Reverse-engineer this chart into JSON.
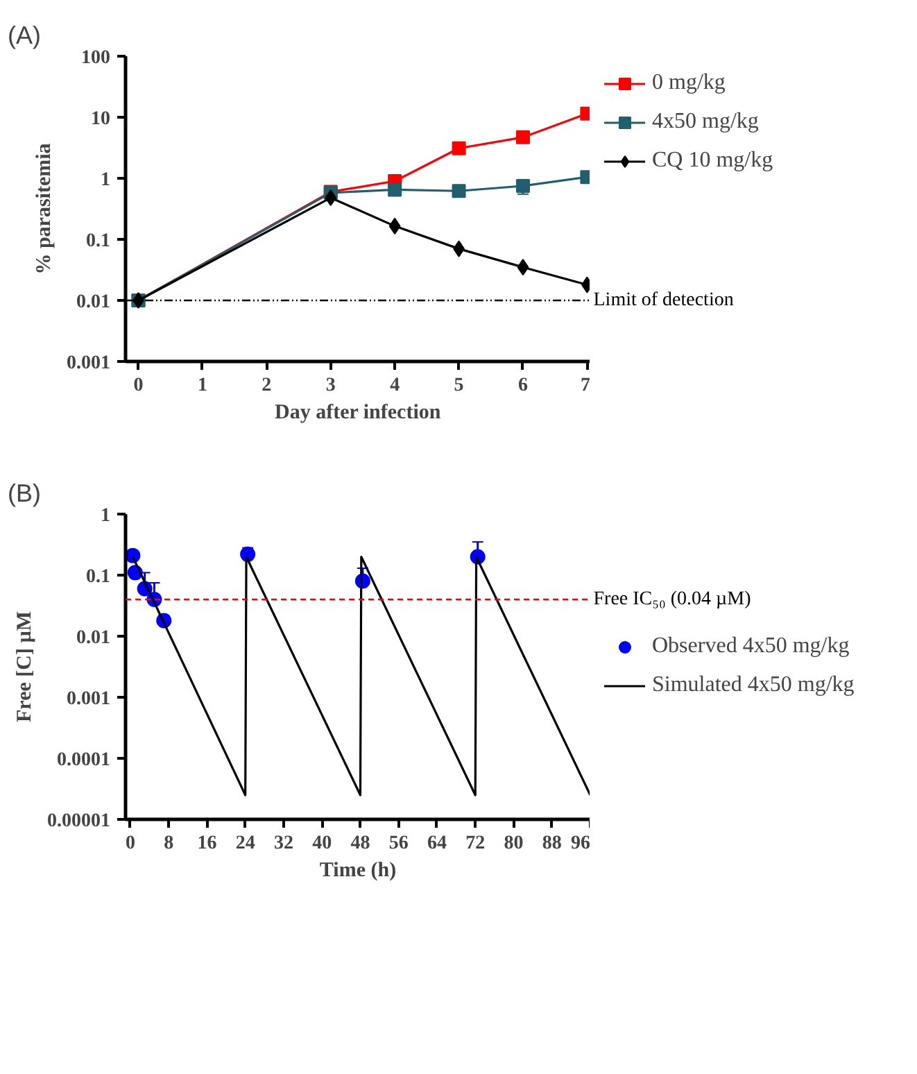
{
  "chart_data": [
    {
      "type": "line",
      "title": "(A)",
      "xlabel": "Day after infection",
      "ylabel": "% parasitemia",
      "log": "y",
      "xlim": [
        -0.2,
        7.05
      ],
      "xticks": [
        0,
        1,
        2,
        3,
        4,
        5,
        6,
        7
      ],
      "ylim": [
        0.001,
        100
      ],
      "yticks": [
        0.001,
        0.01,
        0.1,
        1,
        10,
        100
      ],
      "legend": "top right",
      "grid": false,
      "series": [
        {
          "name": "0 mg/kg",
          "color": "#ff0000",
          "marker": "square",
          "x": [
            0,
            3,
            4,
            5,
            6,
            7
          ],
          "values": [
            0.01,
            0.6,
            0.9,
            3.1,
            4.7,
            11.5
          ]
        },
        {
          "name": "4x50 mg/kg",
          "color": "#1f5f6e",
          "marker": "square",
          "x": [
            0,
            3,
            4,
            5,
            6,
            7
          ],
          "values": [
            0.01,
            0.58,
            0.65,
            0.62,
            0.75,
            1.05
          ],
          "errors": [
            null,
            null,
            null,
            null,
            0.2,
            null
          ]
        },
        {
          "name": "CQ 10 mg/kg",
          "color": "#000000",
          "marker": "diamond",
          "x": [
            0,
            3,
            4,
            5,
            6,
            7
          ],
          "values": [
            0.01,
            0.48,
            0.165,
            0.07,
            0.035,
            0.018
          ]
        }
      ],
      "ref_lines": [
        {
          "axis": "y",
          "value": 0.01,
          "label": "Limit of detection",
          "color": "#000000",
          "line_style": "dashdot"
        }
      ]
    },
    {
      "type": "line",
      "title": "(B)",
      "xlabel": "Time (h)",
      "ylabel": "Free [C] µM",
      "log": "y",
      "xlim": [
        -1,
        96
      ],
      "xticks": [
        0,
        8,
        16,
        24,
        32,
        40,
        48,
        56,
        64,
        72,
        80,
        88,
        96
      ],
      "ylim": [
        1e-05,
        1
      ],
      "yticks": [
        {
          "value": 1e-05,
          "label": "0.00001"
        },
        0.0001,
        0.001,
        0.01,
        0.1,
        1
      ],
      "legend": "right",
      "grid": false,
      "series": [
        {
          "name": "Observed 4x50 mg/kg",
          "type": "scatter",
          "color": "#0000ff",
          "marker": "circle",
          "x": [
            0.5,
            1,
            3,
            5,
            7,
            24.5,
            48.5,
            72.5
          ],
          "values": [
            0.21,
            0.11,
            0.06,
            0.04,
            0.018,
            0.22,
            0.08,
            0.2
          ],
          "errors": [
            [
              0.21,
              0.23
            ],
            null,
            [
              0.06,
              0.11
            ],
            [
              0.04,
              0.075
            ],
            [
              0.018,
              0.022
            ],
            [
              0.22,
              0.28
            ],
            [
              0.08,
              0.13
            ],
            [
              0.2,
              0.35
            ]
          ]
        },
        {
          "name": "Simulated 4x50 mg/kg",
          "type": "line",
          "color": "#000000",
          "marker": "none",
          "x": [
            0.5,
            24,
            24.2,
            48,
            48.2,
            72,
            72.2,
            96
          ],
          "values": [
            0.2,
            2.5e-05,
            0.2,
            2.5e-05,
            0.2,
            2.5e-05,
            0.2,
            2.5e-05
          ]
        }
      ],
      "ref_lines": [
        {
          "axis": "y",
          "value": 0.04,
          "label": "Free IC₅₀ (0.04 µM)",
          "color": "#ff0000",
          "line_style": "dashed"
        }
      ]
    }
  ]
}
